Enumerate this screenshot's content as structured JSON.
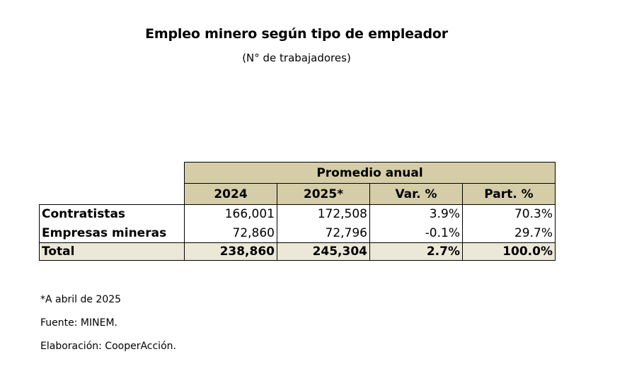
{
  "title": "Empleo minero según tipo de empleador",
  "subtitle": "(N° de trabajadores)",
  "table": {
    "group_header": "Promedio anual",
    "columns": [
      "2024",
      "2025*",
      "Var. %",
      "Part. %"
    ],
    "rows": [
      {
        "label": "Contratistas",
        "values": [
          "166,001",
          "172,508",
          "3.9%",
          "70.3%"
        ]
      },
      {
        "label": "Empresas mineras",
        "values": [
          "72,860",
          "72,796",
          "-0.1%",
          "29.7%"
        ]
      }
    ],
    "total": {
      "label": "Total",
      "values": [
        "238,860",
        "245,304",
        "2.7%",
        "100.0%"
      ]
    }
  },
  "notes": [
    "*A abril de 2025",
    "Fuente: MINEM.",
    "Elaboración: CooperAcción."
  ],
  "colors": {
    "header_fill": "#d5cda8",
    "total_fill": "#ebe8d8"
  }
}
